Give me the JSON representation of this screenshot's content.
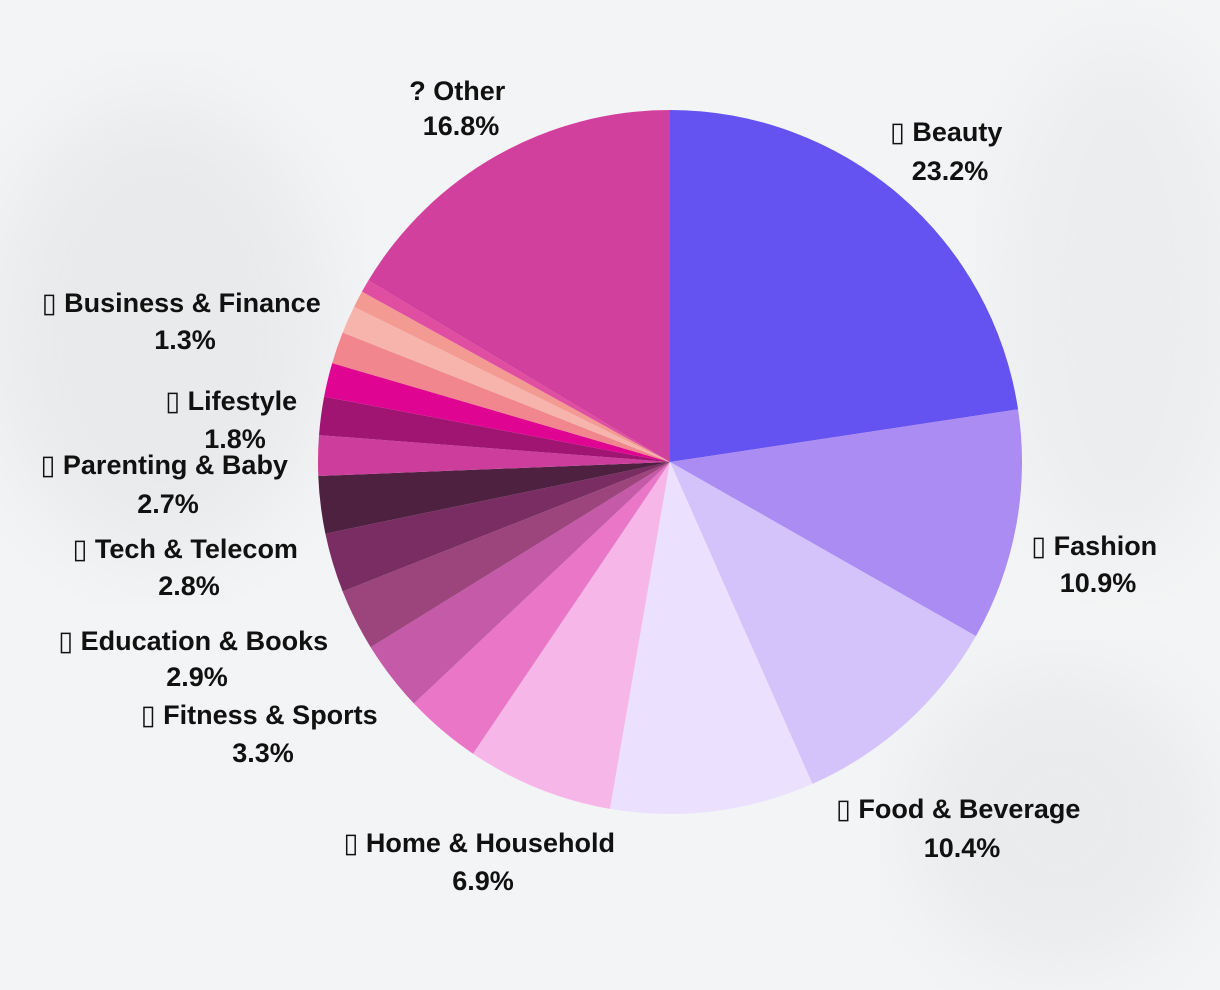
{
  "chart_data": {
    "type": "pie",
    "title": "",
    "slices": [
      {
        "label": "Beauty",
        "value": 23.2,
        "value_label": "23.2%",
        "glyph": "▯",
        "color": "#6452f1",
        "show_label": true
      },
      {
        "label": "Fashion",
        "value": 10.9,
        "value_label": "10.9%",
        "glyph": "▯",
        "color": "#aa8cf3",
        "show_label": true
      },
      {
        "label": "Food & Beverage",
        "value": 10.4,
        "value_label": "10.4%",
        "glyph": "▯",
        "color": "#d4c3fb",
        "show_label": true
      },
      {
        "label": "",
        "value": 9.6,
        "value_label": "",
        "glyph": "",
        "color": "#ebe1fe",
        "show_label": false
      },
      {
        "label": "Home & Household",
        "value": 6.9,
        "value_label": "6.9%",
        "glyph": "▯",
        "color": "#f6b6e8",
        "show_label": true
      },
      {
        "label": "",
        "value": 3.6,
        "value_label": "",
        "glyph": "",
        "color": "#e976c7",
        "show_label": false
      },
      {
        "label": "Fitness & Sports",
        "value": 3.3,
        "value_label": "3.3%",
        "glyph": "▯",
        "color": "#c45aa8",
        "show_label": true
      },
      {
        "label": "Education & Books",
        "value": 2.9,
        "value_label": "2.9%",
        "glyph": "▯",
        "color": "#9b457c",
        "show_label": true
      },
      {
        "label": "Tech & Telecom",
        "value": 2.8,
        "value_label": "2.8%",
        "glyph": "▯",
        "color": "#7a2d62",
        "show_label": true
      },
      {
        "label": "Parenting & Baby",
        "value": 2.7,
        "value_label": "2.7%",
        "glyph": "▯",
        "color": "#4f2140",
        "show_label": true
      },
      {
        "label": "",
        "value": 1.9,
        "value_label": "",
        "glyph": "",
        "color": "#cc3d9c",
        "show_label": false
      },
      {
        "label": "Lifestyle",
        "value": 1.8,
        "value_label": "1.8%",
        "glyph": "▯",
        "color": "#a01472",
        "show_label": true
      },
      {
        "label": "",
        "value": 1.6,
        "value_label": "",
        "glyph": "",
        "color": "#df0592",
        "show_label": false
      },
      {
        "label": "",
        "value": 1.5,
        "value_label": "",
        "glyph": "",
        "color": "#f2868e",
        "show_label": false
      },
      {
        "label": "Business & Finance",
        "value": 1.3,
        "value_label": "1.3%",
        "glyph": "▯",
        "color": "#f7b4ac",
        "show_label": true
      },
      {
        "label": "",
        "value": 0.8,
        "value_label": "",
        "glyph": "",
        "color": "#f39a92",
        "show_label": false
      },
      {
        "label": "",
        "value": 0.6,
        "value_label": "",
        "glyph": "",
        "color": "#df4ea0",
        "show_label": false
      },
      {
        "label": "Other",
        "value": 16.8,
        "value_label": "16.8%",
        "glyph": "?",
        "color": "#d2409e",
        "show_label": true
      }
    ],
    "start_angle": "12 o'clock",
    "direction": "clockwise",
    "legend": "none"
  }
}
